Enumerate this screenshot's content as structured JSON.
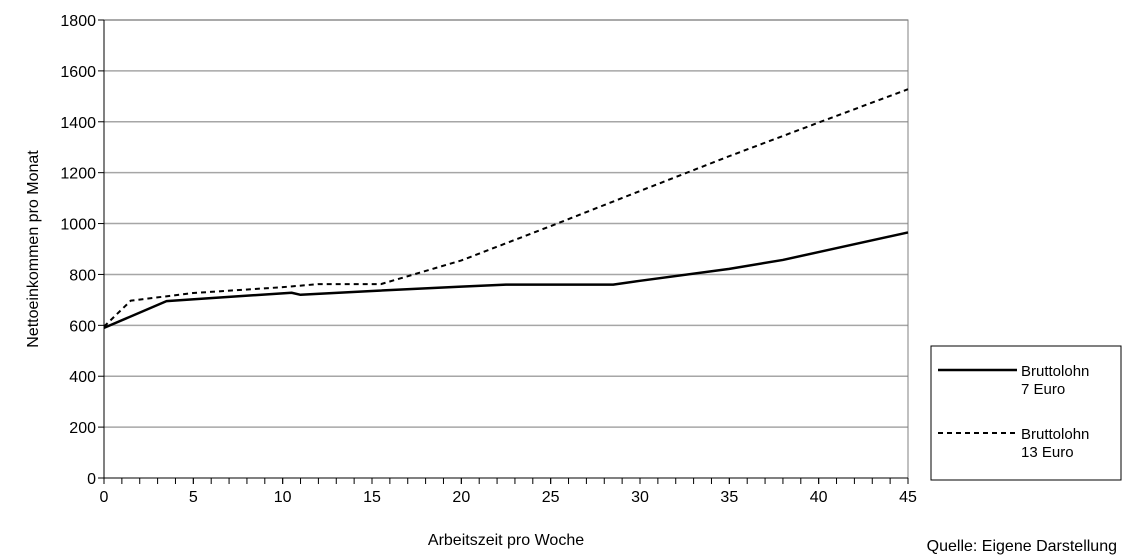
{
  "chart_data": {
    "type": "line",
    "title": "",
    "xlabel": "Arbeitszeit pro Woche",
    "ylabel": "Nettoeinkommen pro Monat",
    "xlim": [
      0,
      45
    ],
    "ylim": [
      0,
      1800
    ],
    "x_ticks": [
      0,
      5,
      10,
      15,
      20,
      25,
      30,
      35,
      40,
      45
    ],
    "y_ticks": [
      0,
      200,
      400,
      600,
      800,
      1000,
      1200,
      1400,
      1600,
      1800
    ],
    "grid": "horizontal",
    "legend_position": "right",
    "series": [
      {
        "name_lines": [
          "Bruttolohn",
          "7 Euro"
        ],
        "style": "solid",
        "color": "#000000",
        "points": [
          [
            0,
            590
          ],
          [
            3.5,
            695
          ],
          [
            7,
            712
          ],
          [
            10.5,
            728
          ],
          [
            11,
            720
          ],
          [
            15,
            735
          ],
          [
            20,
            752
          ],
          [
            22.5,
            760
          ],
          [
            28.5,
            760
          ],
          [
            30,
            775
          ],
          [
            35,
            822
          ],
          [
            38,
            857
          ],
          [
            40,
            888
          ],
          [
            45,
            965
          ]
        ]
      },
      {
        "name_lines": [
          "Bruttolohn",
          "13 Euro"
        ],
        "style": "dashed",
        "color": "#000000",
        "points": [
          [
            0,
            595
          ],
          [
            1.5,
            697
          ],
          [
            5,
            727
          ],
          [
            10,
            750
          ],
          [
            12,
            762
          ],
          [
            15.5,
            762
          ],
          [
            20,
            855
          ],
          [
            25,
            990
          ],
          [
            30,
            1128
          ],
          [
            35,
            1265
          ],
          [
            40,
            1397
          ],
          [
            45,
            1528
          ]
        ]
      }
    ],
    "source": "Quelle: Eigene Darstellung"
  }
}
